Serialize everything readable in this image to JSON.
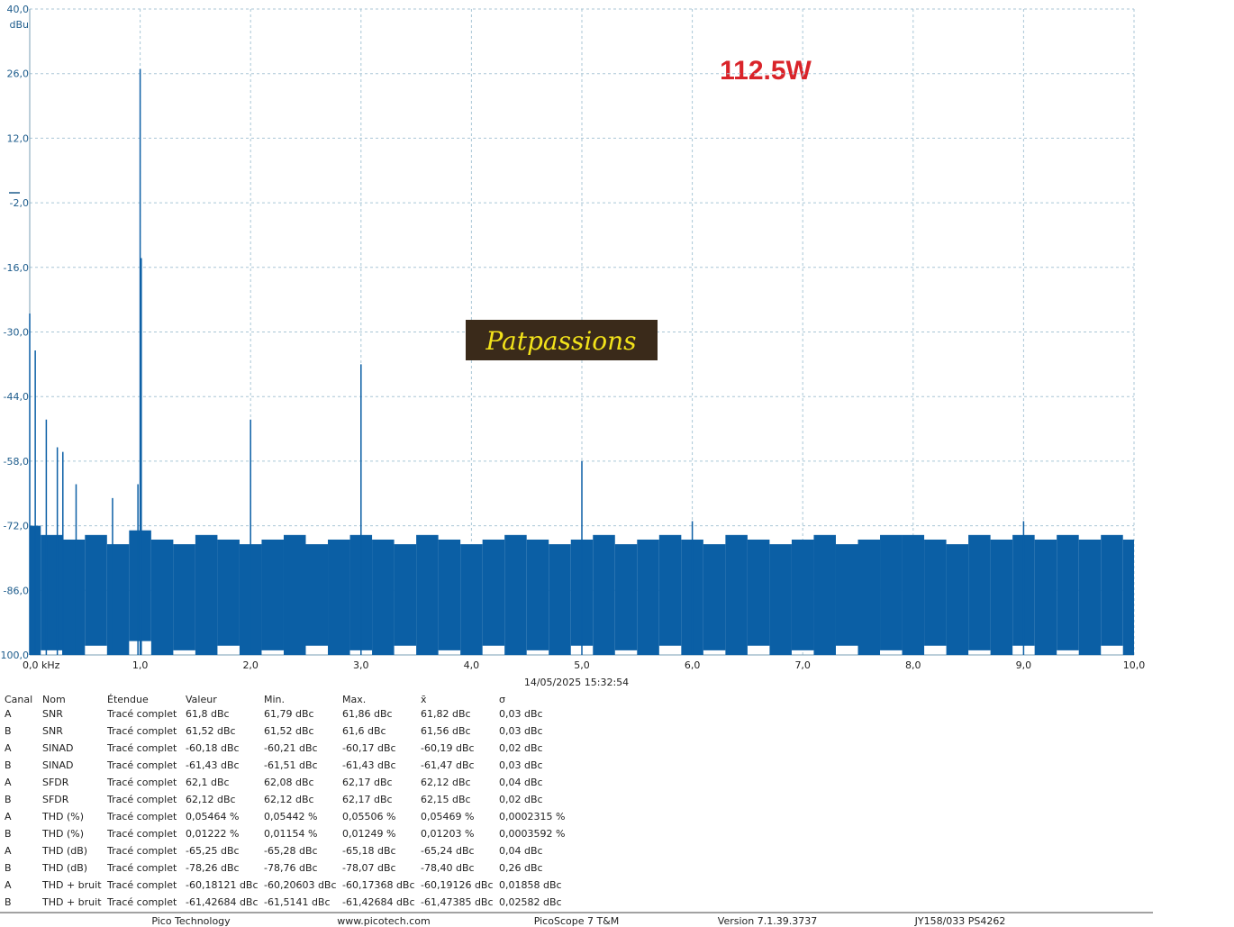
{
  "chart_data": {
    "type": "spectrum",
    "title": "112.5W",
    "ylabel": "dBu",
    "timestamp": "14/05/2025 15:32:54",
    "logo": "Patpassions",
    "color": "#0b5fa5",
    "grid": true,
    "xlim": [
      0,
      10
    ],
    "ylim": [
      -100,
      40
    ],
    "xticks": [
      {
        "value": 0,
        "label": "0,0 kHz"
      },
      {
        "value": 1,
        "label": "1,0"
      },
      {
        "value": 2,
        "label": "2,0"
      },
      {
        "value": 3,
        "label": "3,0"
      },
      {
        "value": 4,
        "label": "4,0"
      },
      {
        "value": 5,
        "label": "5,0"
      },
      {
        "value": 6,
        "label": "6,0"
      },
      {
        "value": 7,
        "label": "7,0"
      },
      {
        "value": 8,
        "label": "8,0"
      },
      {
        "value": 9,
        "label": "9,0"
      },
      {
        "value": 10,
        "label": "10,0"
      }
    ],
    "yticks": [
      {
        "value": 40,
        "label": "40,0"
      },
      {
        "value": 26,
        "label": "26,0"
      },
      {
        "value": 12,
        "label": "12,0"
      },
      {
        "value": -2,
        "label": "-2,0"
      },
      {
        "value": -16,
        "label": "-16,0"
      },
      {
        "value": -30,
        "label": "-30,0"
      },
      {
        "value": -44,
        "label": "-44,0"
      },
      {
        "value": -58,
        "label": "-58,0"
      },
      {
        "value": -72,
        "label": "-72,0"
      },
      {
        "value": -86,
        "label": "-86,0"
      },
      {
        "value": -100,
        "label": "-100,0"
      }
    ],
    "peaks": {
      "x": [
        0.0,
        0.05,
        0.15,
        0.25,
        0.3,
        0.42,
        0.75,
        0.98,
        1.0,
        1.01,
        2.0,
        3.0,
        5.0,
        6.0,
        9.0
      ],
      "values": [
        -26,
        -34,
        -49,
        -55,
        -56,
        -63,
        -66,
        -63,
        27,
        -14,
        -49,
        -37,
        -58,
        -71,
        -71
      ]
    },
    "noise": {
      "x": [
        0.0,
        0.2,
        0.4,
        0.6,
        0.8,
        1.0,
        1.2,
        1.4,
        1.6,
        1.8,
        2.0,
        2.2,
        2.4,
        2.6,
        2.8,
        3.0,
        3.2,
        3.4,
        3.6,
        3.8,
        4.0,
        4.2,
        4.4,
        4.6,
        4.8,
        5.0,
        5.2,
        5.4,
        5.6,
        5.8,
        6.0,
        6.2,
        6.4,
        6.6,
        6.8,
        7.0,
        7.2,
        7.4,
        7.6,
        7.8,
        8.0,
        8.2,
        8.4,
        8.6,
        8.8,
        9.0,
        9.2,
        9.4,
        9.6,
        9.8,
        10.0
      ],
      "values": [
        -72,
        -74,
        -75,
        -74,
        -76,
        -73,
        -75,
        -76,
        -74,
        -75,
        -76,
        -75,
        -74,
        -76,
        -75,
        -74,
        -75,
        -76,
        -74,
        -75,
        -76,
        -75,
        -74,
        -75,
        -76,
        -75,
        -74,
        -76,
        -75,
        -74,
        -75,
        -76,
        -74,
        -75,
        -76,
        -75,
        -74,
        -76,
        -75,
        -74,
        -74,
        -75,
        -76,
        -74,
        -75,
        -74,
        -75,
        -74,
        -75,
        -74,
        -75
      ],
      "low": [
        -100,
        -99,
        -100,
        -98,
        -100,
        -97,
        -100,
        -99,
        -100,
        -98,
        -100,
        -99,
        -100,
        -98,
        -100,
        -99,
        -100,
        -98,
        -100,
        -99,
        -100,
        -98,
        -100,
        -99,
        -100,
        -98,
        -100,
        -99,
        -100,
        -98,
        -100,
        -99,
        -100,
        -98,
        -100,
        -99,
        -100,
        -98,
        -100,
        -99,
        -100,
        -98,
        -100,
        -99,
        -100,
        -98,
        -100,
        -99,
        -100,
        -98,
        -100
      ]
    }
  },
  "table": {
    "columns": [
      "Canal",
      "Nom",
      "Étendue",
      "Valeur",
      "Min.",
      "Max.",
      "x̄",
      "σ"
    ],
    "rows": [
      [
        "A",
        "SNR",
        "Tracé complet",
        "61,8 dBc",
        "61,79 dBc",
        "61,86 dBc",
        "61,82 dBc",
        "0,03 dBc"
      ],
      [
        "B",
        "SNR",
        "Tracé complet",
        "61,52 dBc",
        "61,52 dBc",
        "61,6 dBc",
        "61,56 dBc",
        "0,03 dBc"
      ],
      [
        "A",
        "SINAD",
        "Tracé complet",
        "-60,18 dBc",
        "-60,21 dBc",
        "-60,17 dBc",
        "-60,19 dBc",
        "0,02 dBc"
      ],
      [
        "B",
        "SINAD",
        "Tracé complet",
        "-61,43 dBc",
        "-61,51 dBc",
        "-61,43 dBc",
        "-61,47 dBc",
        "0,03 dBc"
      ],
      [
        "A",
        "SFDR",
        "Tracé complet",
        "62,1 dBc",
        "62,08 dBc",
        "62,17 dBc",
        "62,12 dBc",
        "0,04 dBc"
      ],
      [
        "B",
        "SFDR",
        "Tracé complet",
        "62,12 dBc",
        "62,12 dBc",
        "62,17 dBc",
        "62,15 dBc",
        "0,02 dBc"
      ],
      [
        "A",
        "THD (%)",
        "Tracé complet",
        "0,05464 %",
        "0,05442 %",
        "0,05506 %",
        "0,05469 %",
        "0,0002315 %"
      ],
      [
        "B",
        "THD (%)",
        "Tracé complet",
        "0,01222 %",
        "0,01154 %",
        "0,01249 %",
        "0,01203 %",
        "0,0003592 %"
      ],
      [
        "A",
        "THD (dB)",
        "Tracé complet",
        "-65,25 dBc",
        "-65,28 dBc",
        "-65,18 dBc",
        "-65,24 dBc",
        "0,04 dBc"
      ],
      [
        "B",
        "THD (dB)",
        "Tracé complet",
        "-78,26 dBc",
        "-78,76 dBc",
        "-78,07 dBc",
        "-78,40 dBc",
        "0,26 dBc"
      ],
      [
        "A",
        "THD + bruit",
        "Tracé complet",
        "-60,18121 dBc",
        "-60,20603 dBc",
        "-60,17368 dBc",
        "-60,19126 dBc",
        "0,01858 dBc"
      ],
      [
        "B",
        "THD + bruit",
        "Tracé complet",
        "-61,42684 dBc",
        "-61,5141 dBc",
        "-61,42684 dBc",
        "-61,47385 dBc",
        "0,02582 dBc"
      ]
    ]
  },
  "footer": [
    "Pico Technology",
    "www.picotech.com",
    "PicoScope 7 T&M",
    "Version 7.1.39.3737",
    "JY158/033 PS4262"
  ]
}
